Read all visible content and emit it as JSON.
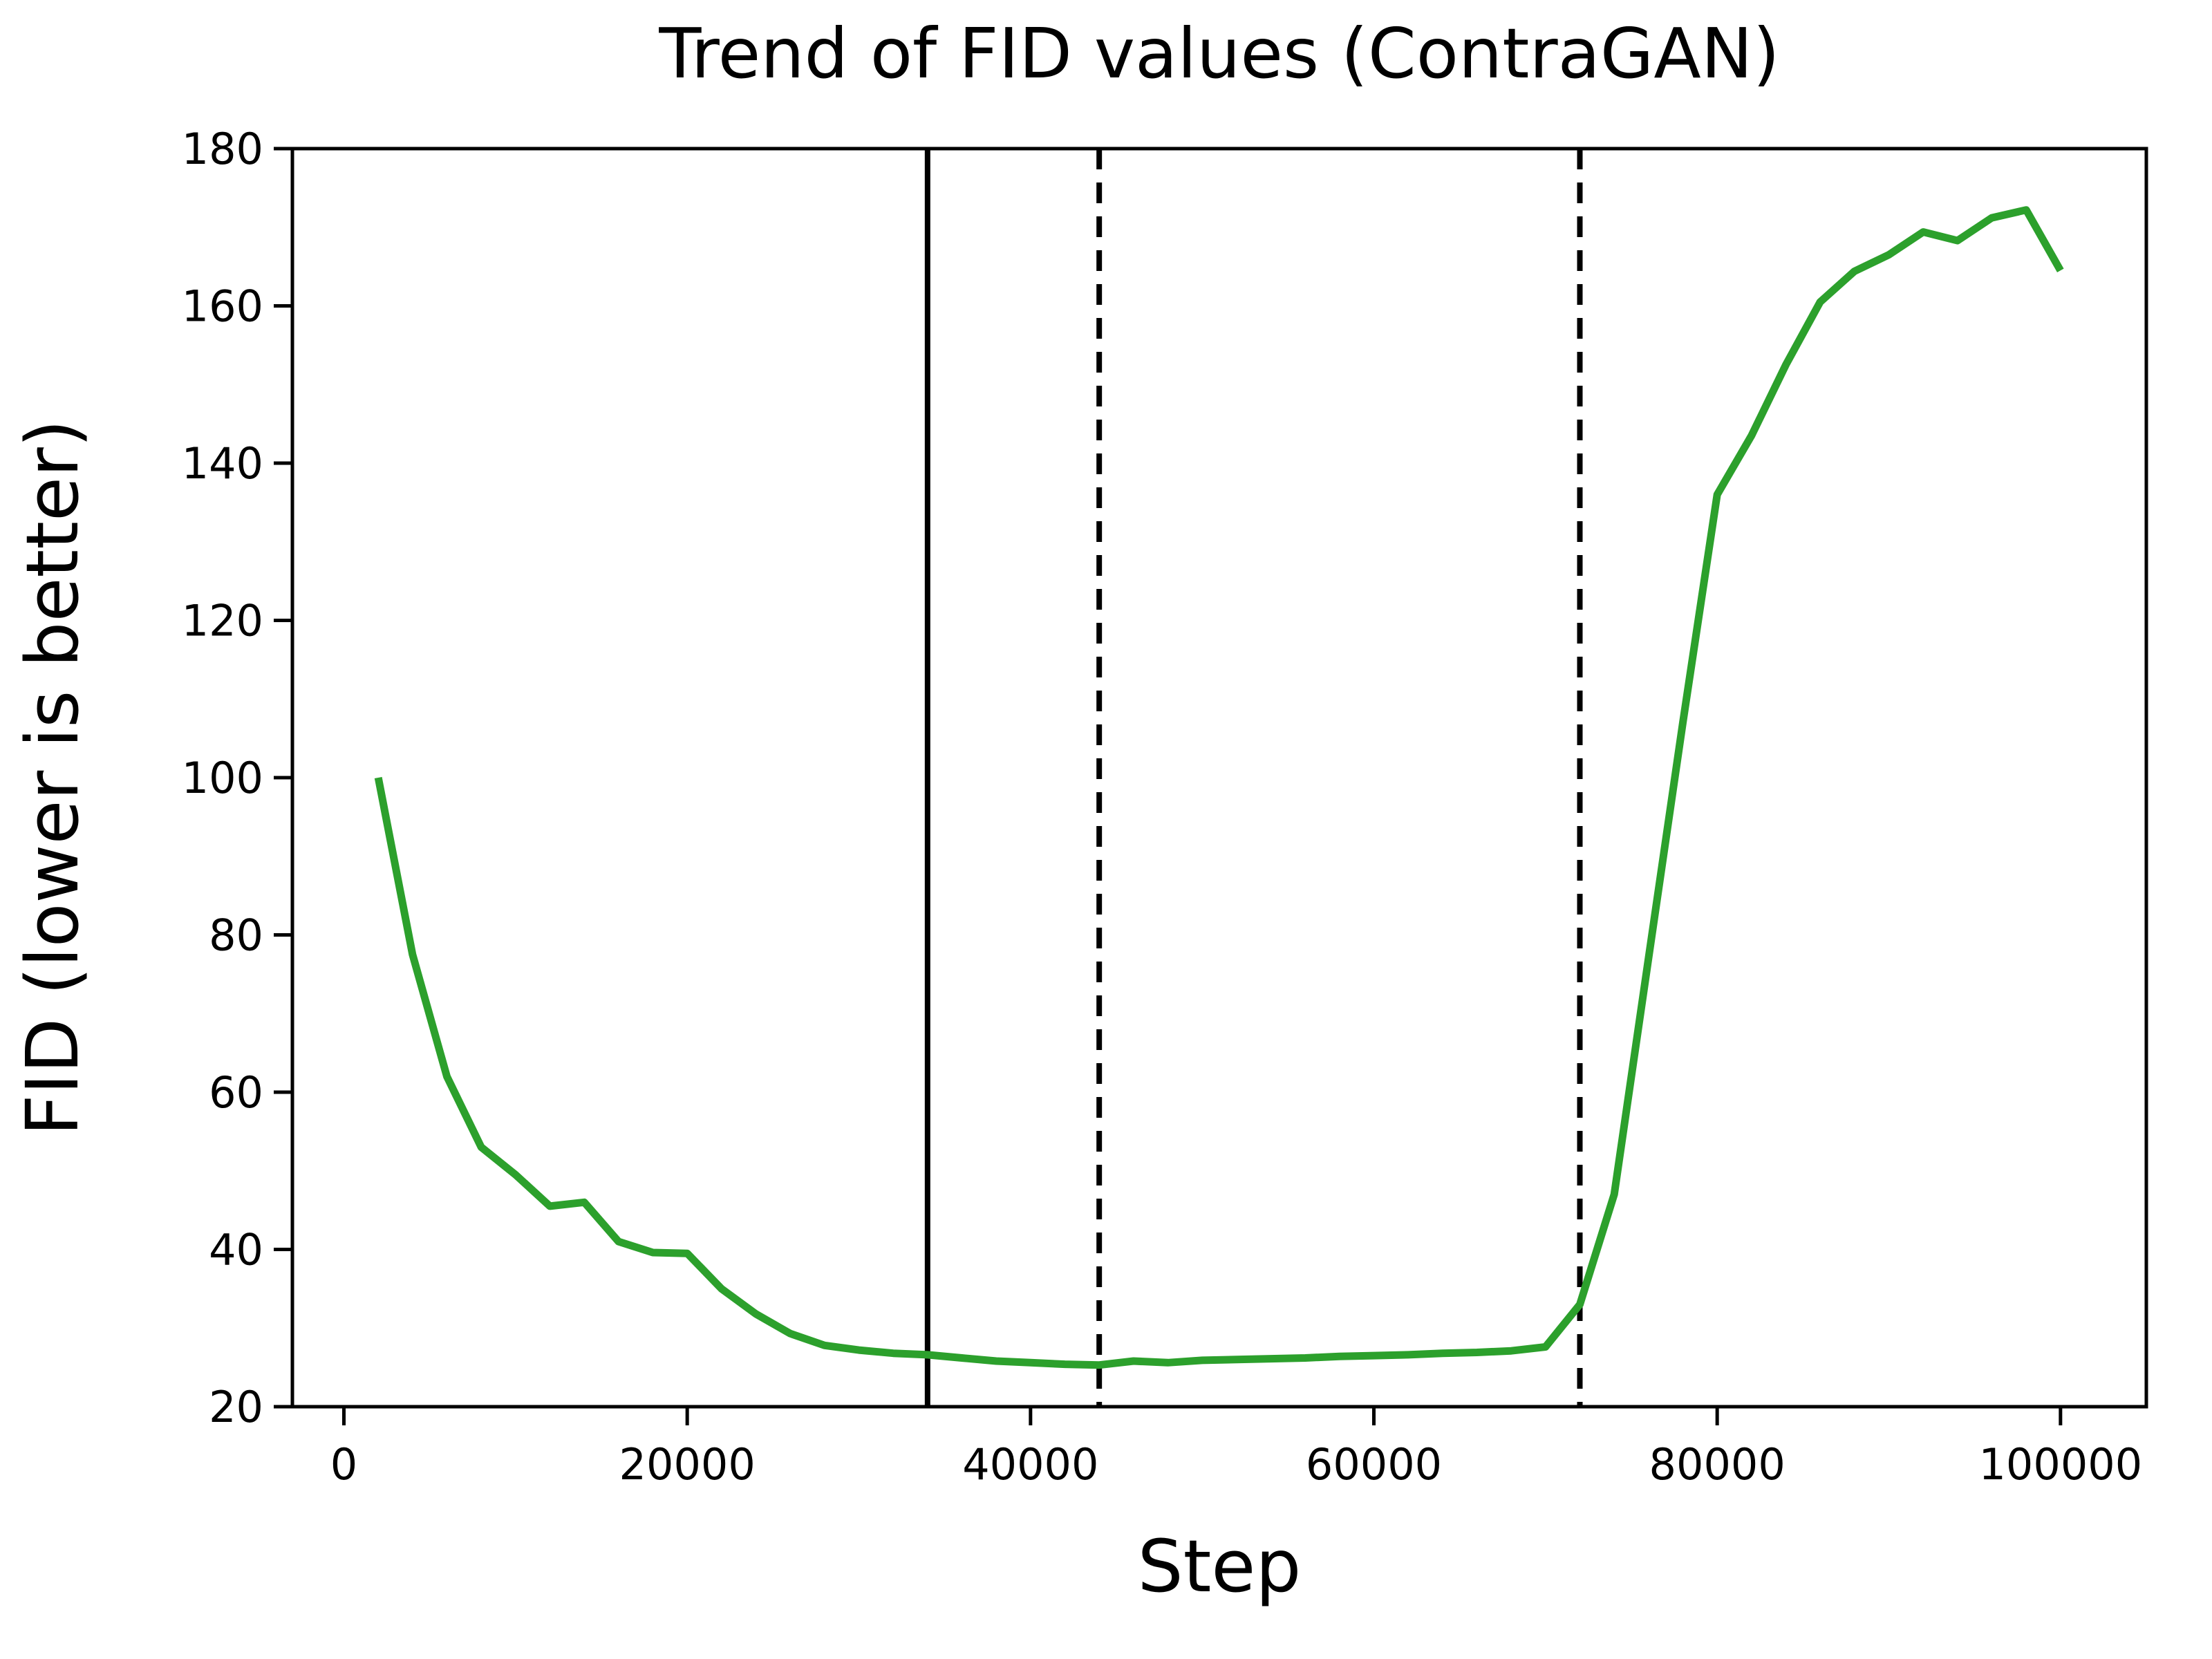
{
  "chart_data": {
    "type": "line",
    "title": "Trend of FID values (ContraGAN)",
    "xlabel": "Step",
    "ylabel": "FID (lower is better)",
    "xlim": [
      -3000,
      105000
    ],
    "ylim": [
      20,
      180
    ],
    "x_ticks": [
      0,
      20000,
      40000,
      60000,
      80000,
      100000
    ],
    "y_ticks": [
      20,
      40,
      60,
      80,
      100,
      120,
      140,
      160,
      180
    ],
    "grid": false,
    "legend": "none",
    "x": [
      2000,
      4000,
      6000,
      8000,
      10000,
      12000,
      14000,
      16000,
      18000,
      20000,
      22000,
      24000,
      26000,
      28000,
      30000,
      32000,
      34000,
      36000,
      38000,
      40000,
      42000,
      44000,
      46000,
      48000,
      50000,
      52000,
      54000,
      56000,
      58000,
      60000,
      62000,
      64000,
      66000,
      68000,
      70000,
      72000,
      74000,
      76000,
      78000,
      80000,
      82000,
      84000,
      86000,
      88000,
      90000,
      92000,
      94000,
      96000,
      98000,
      100000
    ],
    "series": [
      {
        "name": "FID (ContraGAN)",
        "color": "#2ca02c",
        "values": [
          100,
          77.5,
          62,
          53,
          49.5,
          45.5,
          46,
          41,
          39.6,
          39.5,
          35,
          31.8,
          29.3,
          27.8,
          27.2,
          26.8,
          26.6,
          26.2,
          25.8,
          25.6,
          25.4,
          25.3,
          25.8,
          25.6,
          25.9,
          26.0,
          26.1,
          26.2,
          26.4,
          26.5,
          26.6,
          26.8,
          26.9,
          27.1,
          27.6,
          33,
          47,
          77,
          107,
          136,
          143.5,
          152.5,
          160.5,
          164.4,
          166.5,
          169.4,
          168.3,
          171.2,
          172.2,
          164.5
        ]
      }
    ],
    "vlines": [
      {
        "x": 34000,
        "style": "solid",
        "color": "#000000"
      },
      {
        "x": 44000,
        "style": "dashed",
        "color": "#000000"
      },
      {
        "x": 72000,
        "style": "dashed",
        "color": "#000000"
      }
    ]
  },
  "colors": {
    "line": "#2ca02c",
    "axes": "#000000",
    "background": "#ffffff"
  }
}
